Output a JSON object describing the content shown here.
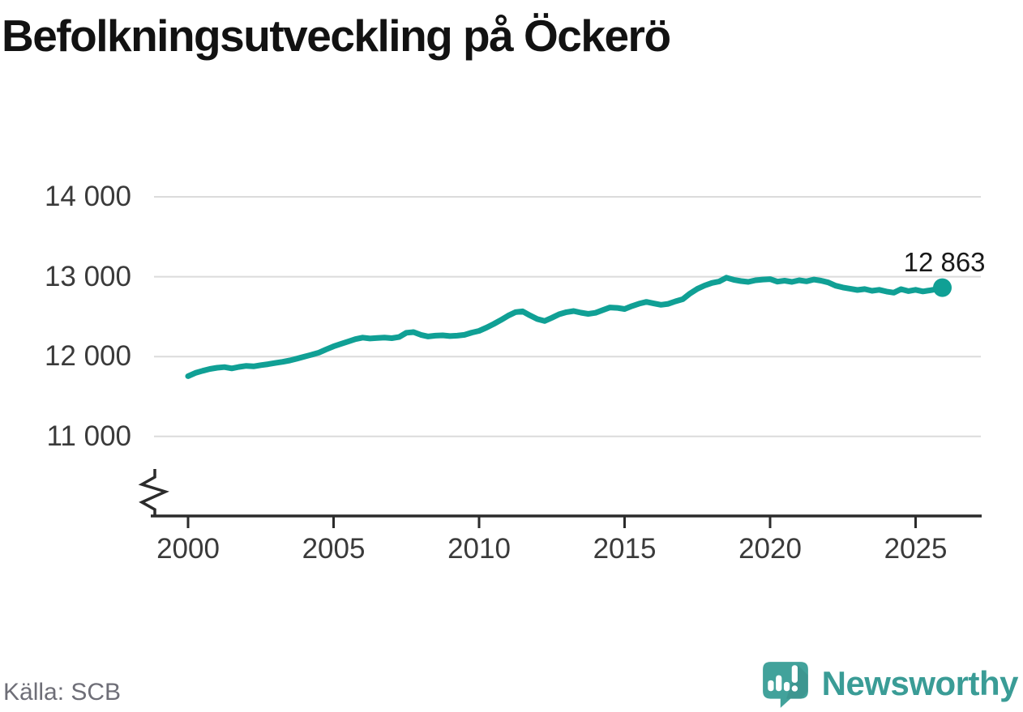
{
  "header": {
    "title": "Befolkningsutveckling på Öckerö"
  },
  "footer": {
    "source": "Källa: SCB",
    "brand_name": "Newsworthy"
  },
  "annotation": {
    "end_value_label": "12 863"
  },
  "colors": {
    "line": "#10A095",
    "grid": "#dbdbdb",
    "axis": "#2b2b2b",
    "tick_text": "#3a3a3a",
    "title_text": "#121212",
    "source_text": "#6e6e77",
    "brand_teal": "#3a9c96",
    "brand_icon": "#42A29B"
  },
  "chart_data": {
    "type": "line",
    "title": "Befolkningsutveckling på Öckerö",
    "xlabel": "",
    "ylabel": "",
    "grid": "horizontal",
    "axis_break": true,
    "legend": "none",
    "source": "SCB",
    "x_tick_values": [
      2000,
      2005,
      2010,
      2015,
      2020,
      2025
    ],
    "x_tick_labels": [
      "2000",
      "2005",
      "2010",
      "2015",
      "2020",
      "2025"
    ],
    "y_tick_values": [
      14000,
      13000,
      12000,
      11000
    ],
    "y_tick_labels": [
      "14 000",
      "13 000",
      "12 000",
      "11 000"
    ],
    "ylim_displayed": [
      11000,
      14000
    ],
    "x_range": [
      2000,
      2025.92
    ],
    "end_point": {
      "x": 2025.92,
      "y": 12863,
      "label": "12 863"
    },
    "series": [
      {
        "name": "Befolkning",
        "color": "#10A095",
        "x": [
          2000.0,
          2000.25,
          2000.5,
          2000.75,
          2001.0,
          2001.25,
          2001.5,
          2001.75,
          2002.0,
          2002.25,
          2002.5,
          2002.75,
          2003.0,
          2003.25,
          2003.5,
          2003.75,
          2004.0,
          2004.25,
          2004.5,
          2004.75,
          2005.0,
          2005.25,
          2005.5,
          2005.75,
          2006.0,
          2006.25,
          2006.5,
          2006.75,
          2007.0,
          2007.25,
          2007.5,
          2007.75,
          2008.0,
          2008.25,
          2008.5,
          2008.75,
          2009.0,
          2009.25,
          2009.5,
          2009.75,
          2010.0,
          2010.25,
          2010.5,
          2010.75,
          2011.0,
          2011.25,
          2011.5,
          2011.75,
          2012.0,
          2012.25,
          2012.5,
          2012.75,
          2013.0,
          2013.25,
          2013.5,
          2013.75,
          2014.0,
          2014.25,
          2014.5,
          2014.75,
          2015.0,
          2015.25,
          2015.5,
          2015.75,
          2016.0,
          2016.25,
          2016.5,
          2016.75,
          2017.0,
          2017.25,
          2017.5,
          2017.75,
          2018.0,
          2018.25,
          2018.5,
          2018.75,
          2019.0,
          2019.25,
          2019.5,
          2019.75,
          2020.0,
          2020.25,
          2020.5,
          2020.75,
          2021.0,
          2021.25,
          2021.5,
          2021.75,
          2022.0,
          2022.25,
          2022.5,
          2022.75,
          2023.0,
          2023.25,
          2023.5,
          2023.75,
          2024.0,
          2024.25,
          2024.5,
          2024.75,
          2025.0,
          2025.25,
          2025.5,
          2025.75,
          2025.92
        ],
        "y": [
          11755,
          11795,
          11822,
          11845,
          11860,
          11868,
          11852,
          11870,
          11884,
          11878,
          11893,
          11905,
          11920,
          11934,
          11952,
          11975,
          12000,
          12024,
          12050,
          12090,
          12128,
          12158,
          12188,
          12218,
          12238,
          12226,
          12232,
          12238,
          12230,
          12245,
          12298,
          12306,
          12272,
          12252,
          12262,
          12266,
          12257,
          12262,
          12272,
          12300,
          12322,
          12362,
          12408,
          12458,
          12512,
          12556,
          12566,
          12515,
          12470,
          12445,
          12486,
          12530,
          12556,
          12570,
          12550,
          12535,
          12548,
          12582,
          12615,
          12610,
          12595,
          12632,
          12662,
          12685,
          12665,
          12648,
          12660,
          12692,
          12718,
          12790,
          12848,
          12890,
          12922,
          12940,
          12988,
          12962,
          12945,
          12935,
          12955,
          12965,
          12970,
          12938,
          12950,
          12935,
          12955,
          12942,
          12965,
          12950,
          12928,
          12888,
          12865,
          12850,
          12834,
          12845,
          12824,
          12836,
          12815,
          12800,
          12844,
          12820,
          12836,
          12816,
          12830,
          12846,
          12863
        ]
      }
    ]
  }
}
